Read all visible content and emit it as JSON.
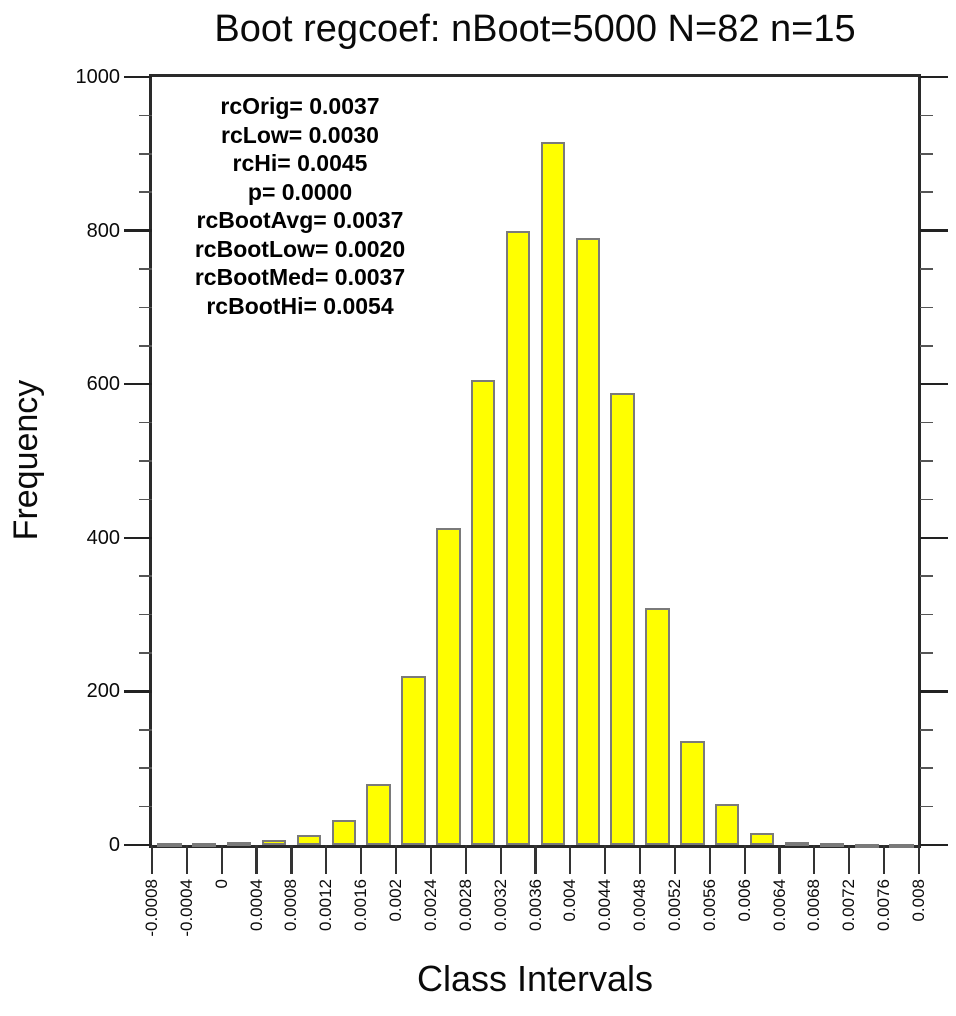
{
  "title": "Boot regcoef: nBoot=5000 N=82 n=15",
  "y_axis_title": "Frequency",
  "x_axis_title": "Class Intervals",
  "annotation": {
    "lines": [
      "rcOrig= 0.0037",
      "rcLow= 0.0030",
      "rcHi= 0.0045",
      "p= 0.0000",
      "rcBootAvg= 0.0037",
      "rcBootLow= 0.0020",
      "rcBootMed= 0.0037",
      "rcBootHi= 0.0054"
    ]
  },
  "chart_data": {
    "type": "bar",
    "subtype": "histogram",
    "title": "Boot regcoef: nBoot=5000 N=82 n=15",
    "xlabel": "Class Intervals",
    "ylabel": "Frequency",
    "x_tick_labels": [
      "-0.0008",
      "-0.0004",
      "0",
      "0.0004",
      "0.0008",
      "0.0012",
      "0.0016",
      "0.002",
      "0.0024",
      "0.0028",
      "0.0032",
      "0.0036",
      "0.004",
      "0.0044",
      "0.0048",
      "0.0052",
      "0.0056",
      "0.006",
      "0.0064",
      "0.0068",
      "0.0072",
      "0.0076",
      "0.008"
    ],
    "bin_edges": [
      -0.0008,
      -0.0004,
      0,
      0.0004,
      0.0008,
      0.0012,
      0.0016,
      0.002,
      0.0024,
      0.0028,
      0.0032,
      0.0036,
      0.004,
      0.0044,
      0.0048,
      0.0052,
      0.0056,
      0.006,
      0.0064,
      0.0068,
      0.0072,
      0.0076,
      0.008
    ],
    "values": [
      2,
      3,
      4,
      7,
      13,
      32,
      80,
      220,
      413,
      605,
      800,
      915,
      790,
      588,
      308,
      135,
      53,
      15,
      4,
      2,
      1,
      1
    ],
    "ylim": [
      0,
      1000
    ],
    "y_major_ticks": [
      0,
      200,
      400,
      600,
      800,
      1000
    ],
    "y_minor_step": 50,
    "grid": false,
    "legend": "none",
    "bar_fill_color": "#ffff00",
    "bar_border_color": "#7a7a7a",
    "axis_color": "#2a2a2a",
    "stats": {
      "rcOrig": 0.0037,
      "rcLow": 0.003,
      "rcHi": 0.0045,
      "p": 0.0,
      "rcBootAvg": 0.0037,
      "rcBootLow": 0.002,
      "rcBootMed": 0.0037,
      "rcBootHi": 0.0054
    }
  }
}
